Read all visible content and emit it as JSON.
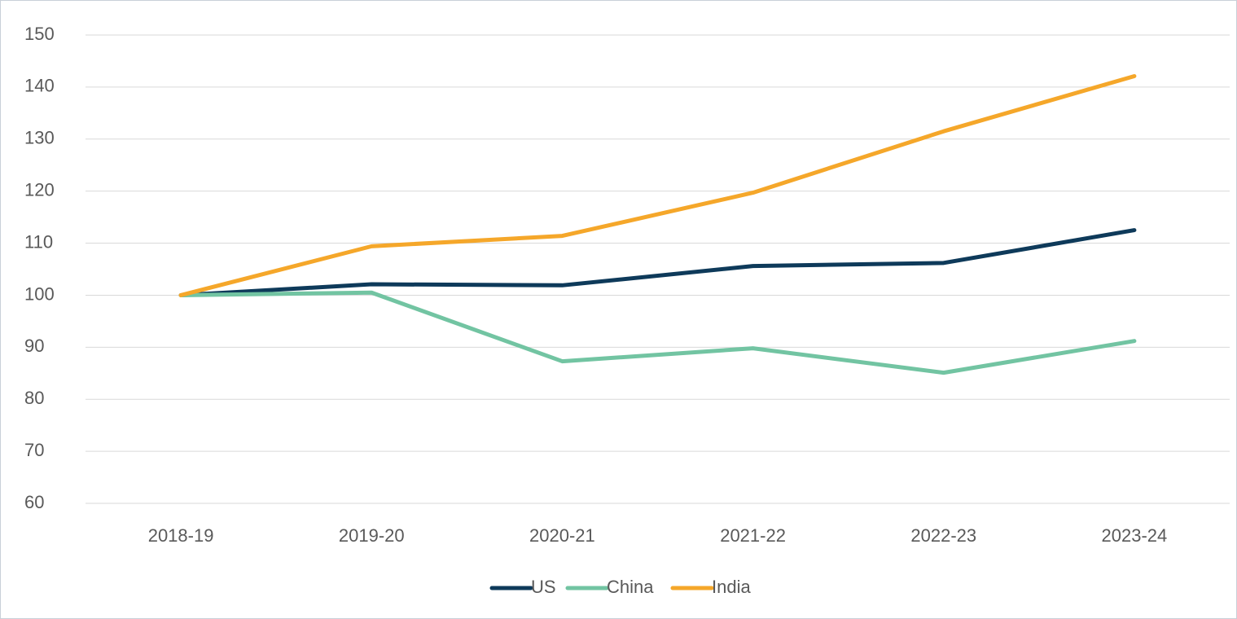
{
  "chart_data": {
    "type": "line",
    "categories": [
      "2018-19",
      "2019-20",
      "2020-21",
      "2021-22",
      "2022-23",
      "2023-24"
    ],
    "series": [
      {
        "name": "US",
        "color": "#0e3a5a",
        "values": [
          100,
          102.1,
          101.9,
          105.6,
          106.2,
          112.5
        ]
      },
      {
        "name": "China",
        "color": "#72c4a2",
        "values": [
          100,
          100.5,
          87.3,
          89.8,
          85.1,
          91.2
        ]
      },
      {
        "name": "India",
        "color": "#f5a72a",
        "values": [
          100,
          109.4,
          111.4,
          119.7,
          131.5,
          142.1
        ]
      }
    ],
    "ylim": [
      60,
      150
    ],
    "yticks": [
      60,
      70,
      80,
      90,
      100,
      110,
      120,
      130,
      140,
      150
    ],
    "grid": true,
    "legend": "bottom"
  }
}
